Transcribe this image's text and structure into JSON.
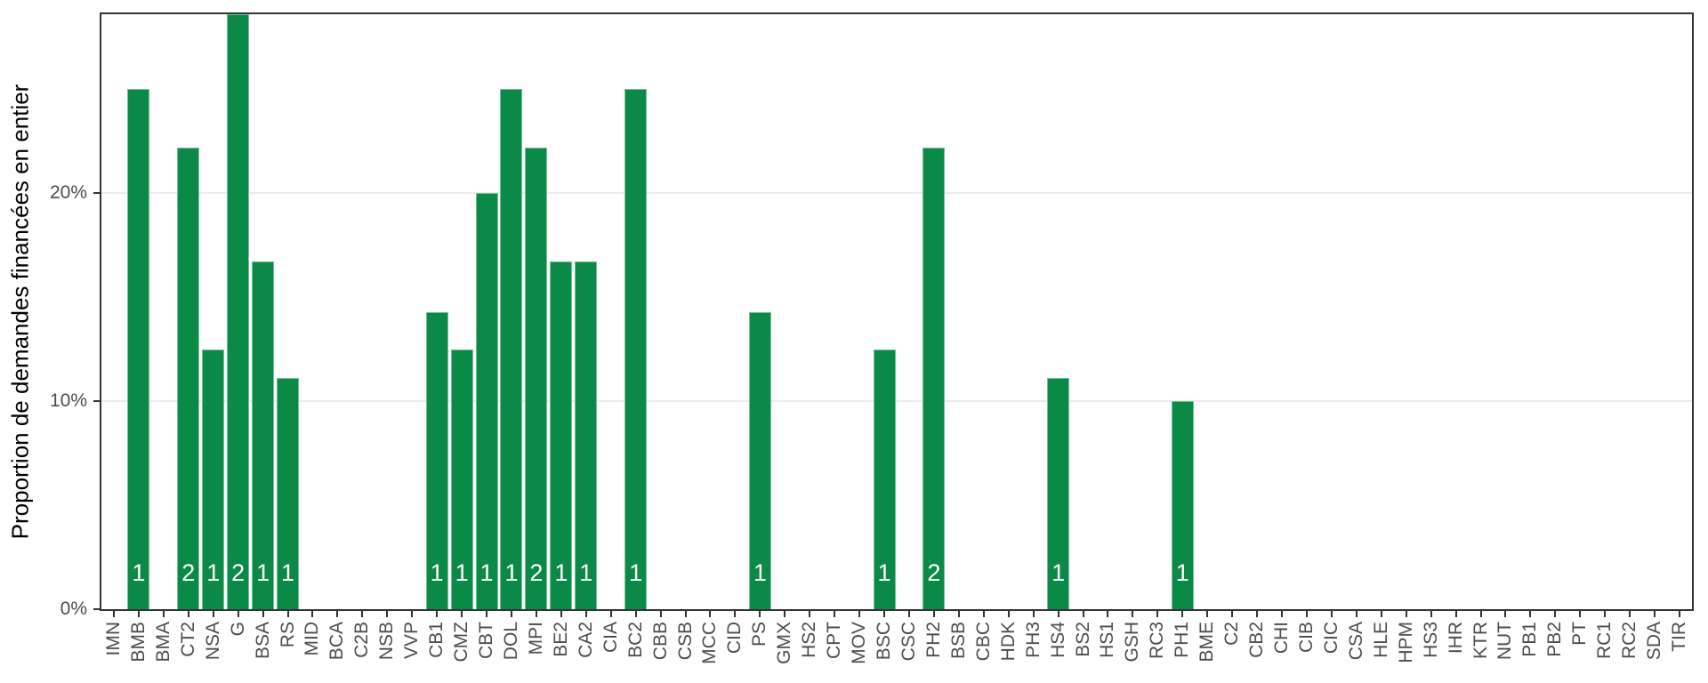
{
  "chart_data": {
    "type": "bar",
    "title": "",
    "xlabel": "",
    "ylabel": "Proportion de demandes financées en entier",
    "ylim": [
      0,
      28.6
    ],
    "grid": "major-y-only",
    "legend": "none",
    "bar_color": "#0a8a46",
    "bar_label_color": "#ffffff",
    "grid_color": "#ebebeb",
    "axis_color": "#333333",
    "tick_label_color": "#4d4d4d",
    "yticks": [
      {
        "value": 0,
        "label": "0%"
      },
      {
        "value": 10,
        "label": "10%"
      },
      {
        "value": 20,
        "label": "20%"
      }
    ],
    "categories": [
      "IMN",
      "BMB",
      "BMA",
      "CT2",
      "NSA",
      "G",
      "BSA",
      "RS",
      "MID",
      "BCA",
      "C2B",
      "NSB",
      "VVP",
      "CB1",
      "CMZ",
      "CBT",
      "DOL",
      "MPI",
      "BE2",
      "CA2",
      "CIA",
      "BC2",
      "CBB",
      "CSB",
      "MCC",
      "CID",
      "PS",
      "GMX",
      "HS2",
      "CPT",
      "MOV",
      "BSC",
      "CSC",
      "PH2",
      "BSB",
      "CBC",
      "HDK",
      "PH3",
      "HS4",
      "BS2",
      "HS1",
      "GSH",
      "RC3",
      "PH1",
      "BME",
      "C2",
      "CB2",
      "CHI",
      "CIB",
      "CIC",
      "CSA",
      "HLE",
      "HPM",
      "HS3",
      "IHR",
      "KTR",
      "NUT",
      "PB1",
      "PB2",
      "PT",
      "RC1",
      "RC2",
      "SDA",
      "TIR"
    ],
    "values": [
      0,
      25,
      0,
      22.2,
      12.5,
      28.6,
      16.7,
      11.1,
      0,
      0,
      0,
      0,
      0,
      14.3,
      12.5,
      20,
      25,
      22.2,
      16.7,
      16.7,
      0,
      25,
      0,
      0,
      0,
      0,
      14.3,
      0,
      0,
      0,
      0,
      12.5,
      0,
      22.2,
      0,
      0,
      0,
      0,
      11.1,
      0,
      0,
      0,
      0,
      10,
      0,
      0,
      0,
      0,
      0,
      0,
      0,
      0,
      0,
      0,
      0,
      0,
      0,
      0,
      0,
      0,
      0,
      0,
      0,
      0
    ],
    "bar_labels": [
      "",
      "1",
      "",
      "2",
      "1",
      "2",
      "1",
      "1",
      "",
      "",
      "",
      "",
      "",
      "1",
      "1",
      "1",
      "1",
      "2",
      "1",
      "1",
      "",
      "1",
      "",
      "",
      "",
      "",
      "1",
      "",
      "",
      "",
      "",
      "1",
      "",
      "2",
      "",
      "",
      "",
      "",
      "1",
      "",
      "",
      "",
      "",
      "1",
      "",
      "",
      "",
      "",
      "",
      "",
      "",
      "",
      "",
      "",
      "",
      "",
      "",
      "",
      "",
      "",
      "",
      "",
      "",
      ""
    ]
  }
}
